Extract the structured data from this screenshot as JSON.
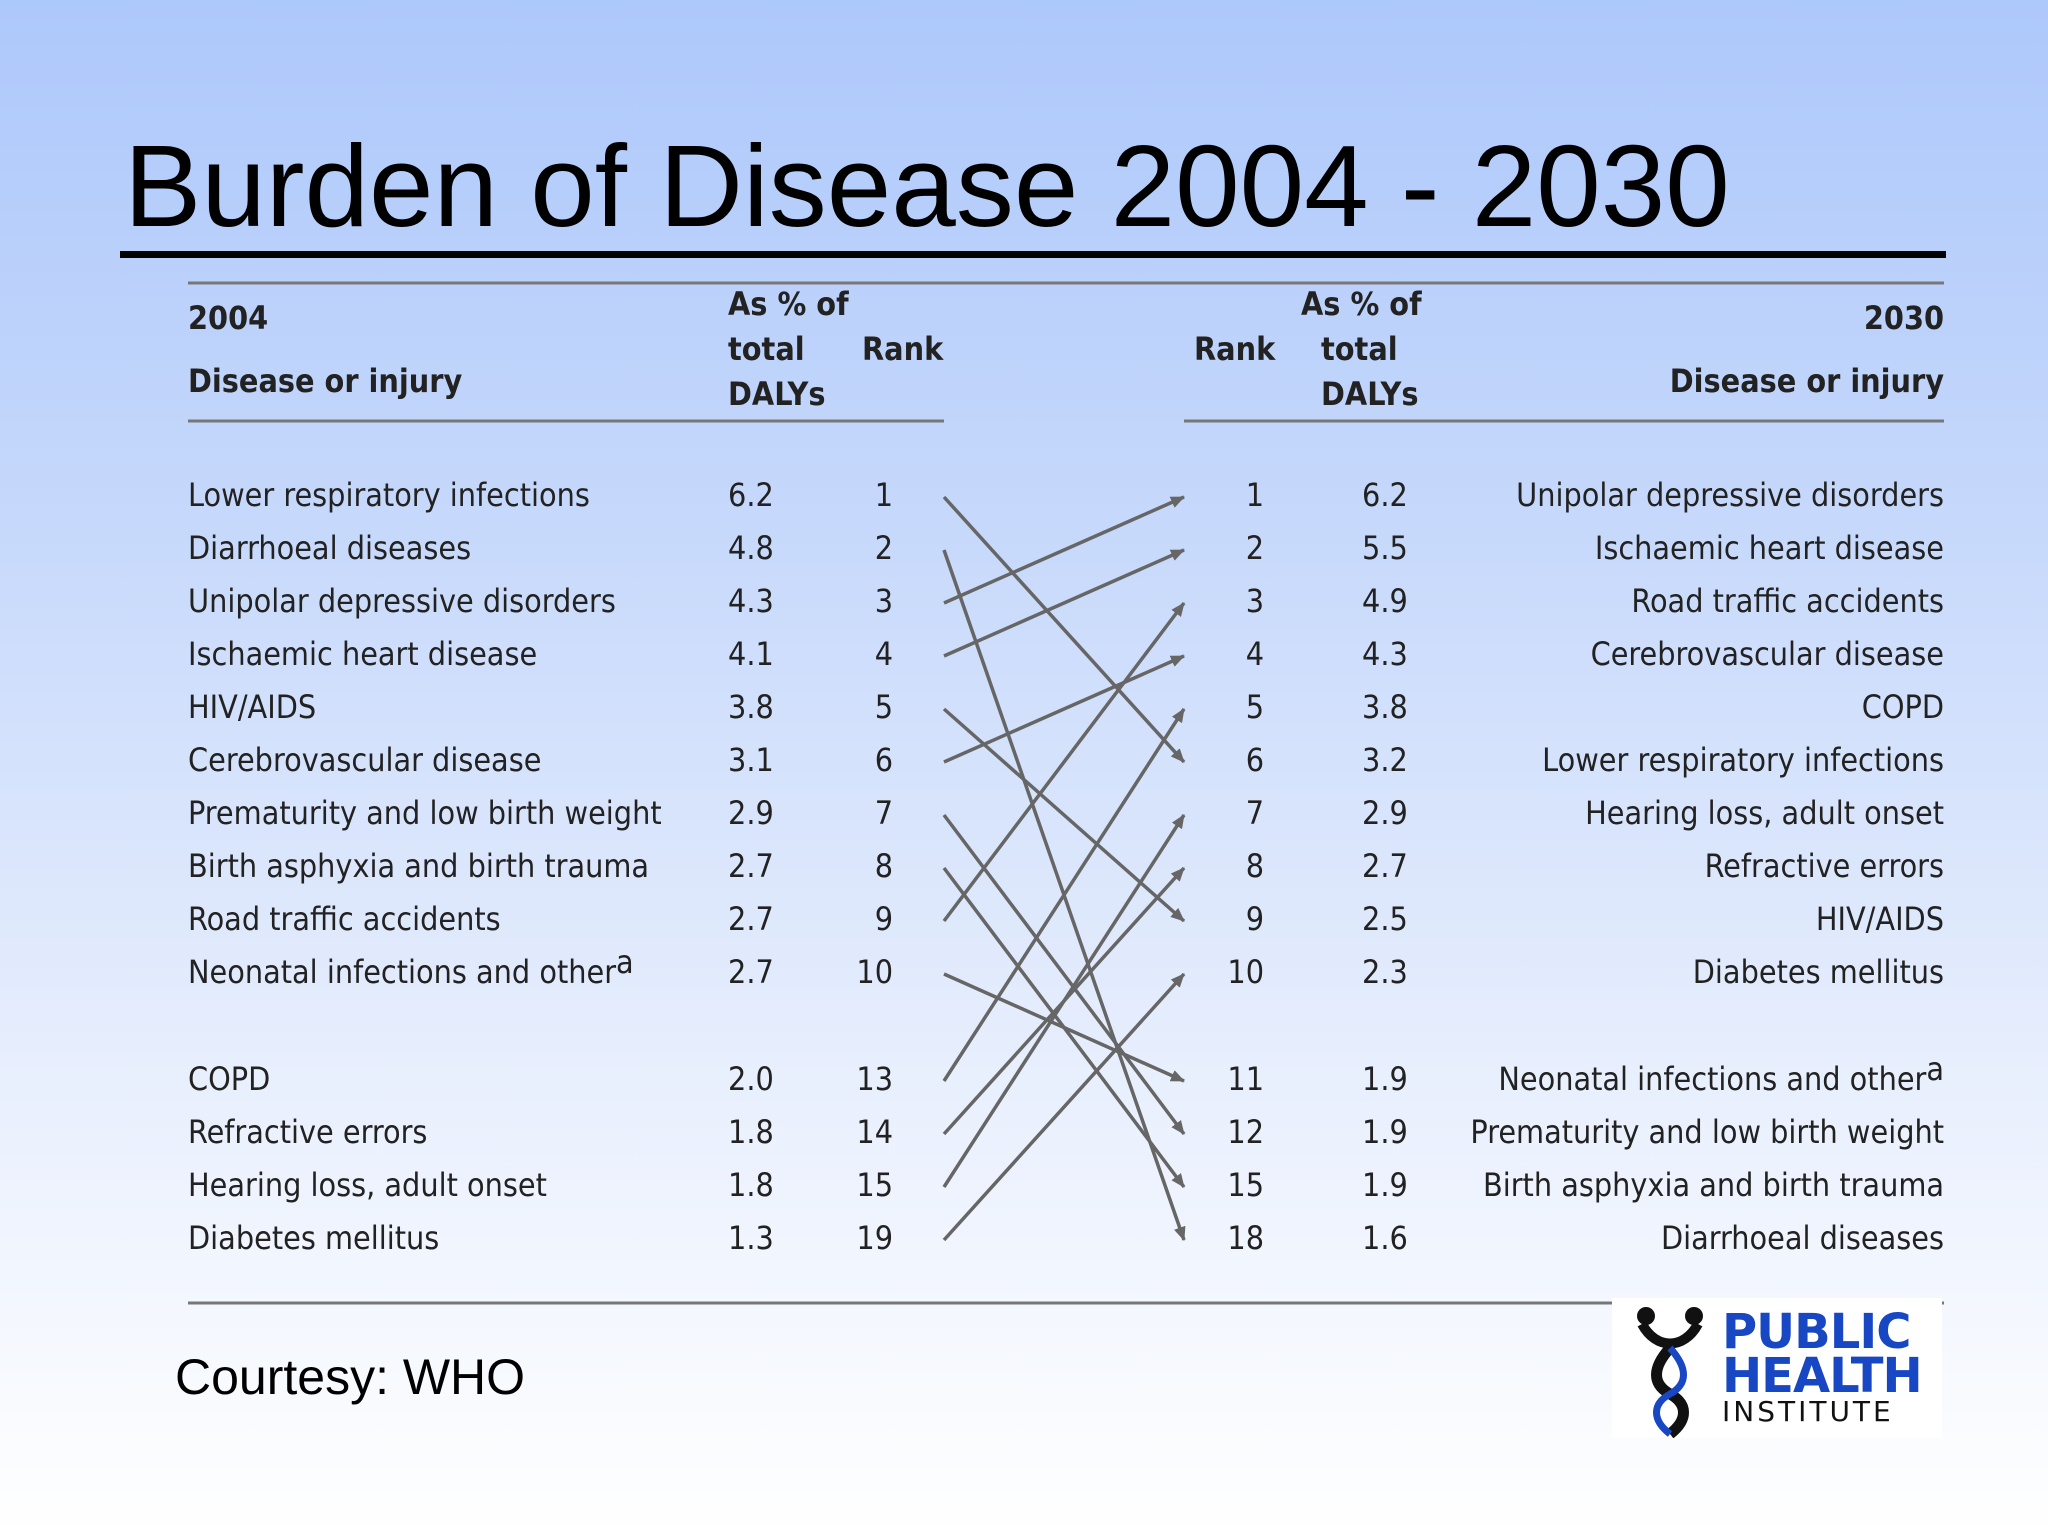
{
  "slide": {
    "title": "Burden of Disease 2004 - 2030",
    "courtesy": "Courtesy: WHO"
  },
  "logo": {
    "line1": "PUBLIC",
    "line2": "HEALTH",
    "line3": "INSTITUTE",
    "color": "#1847c4"
  },
  "chart_data": {
    "type": "table",
    "left_header": {
      "year": "2004",
      "disease": "Disease or injury",
      "pct": [
        "As % of",
        "total",
        "DALYs"
      ],
      "rank": "Rank"
    },
    "right_header": {
      "year": "2030",
      "disease": "Disease or injury",
      "pct": [
        "As % of",
        "total",
        "DALYs"
      ],
      "rank": "Rank"
    },
    "left_rows": [
      {
        "disease": "Lower respiratory infections",
        "pct": "6.2",
        "rank": "1"
      },
      {
        "disease": "Diarrhoeal diseases",
        "pct": "4.8",
        "rank": "2"
      },
      {
        "disease": "Unipolar depressive disorders",
        "pct": "4.3",
        "rank": "3"
      },
      {
        "disease": "Ischaemic heart disease",
        "pct": "4.1",
        "rank": "4"
      },
      {
        "disease": "HIV/AIDS",
        "pct": "3.8",
        "rank": "5"
      },
      {
        "disease": "Cerebrovascular disease",
        "pct": "3.1",
        "rank": "6"
      },
      {
        "disease": "Prematurity and low birth weight",
        "pct": "2.9",
        "rank": "7"
      },
      {
        "disease": "Birth asphyxia and birth trauma",
        "pct": "2.7",
        "rank": "8"
      },
      {
        "disease": "Road traffic accidents",
        "pct": "2.7",
        "rank": "9"
      },
      {
        "disease": "Neonatal infections and other",
        "sup": "a",
        "pct": "2.7",
        "rank": "10"
      },
      {
        "disease": "COPD",
        "pct": "2.0",
        "rank": "13"
      },
      {
        "disease": "Refractive errors",
        "pct": "1.8",
        "rank": "14"
      },
      {
        "disease": "Hearing loss, adult onset",
        "pct": "1.8",
        "rank": "15"
      },
      {
        "disease": "Diabetes mellitus",
        "pct": "1.3",
        "rank": "19"
      }
    ],
    "right_rows": [
      {
        "rank": "1",
        "pct": "6.2",
        "disease": "Unipolar depressive disorders"
      },
      {
        "rank": "2",
        "pct": "5.5",
        "disease": "Ischaemic heart disease"
      },
      {
        "rank": "3",
        "pct": "4.9",
        "disease": "Road traffic accidents"
      },
      {
        "rank": "4",
        "pct": "4.3",
        "disease": "Cerebrovascular disease"
      },
      {
        "rank": "5",
        "pct": "3.8",
        "disease": "COPD"
      },
      {
        "rank": "6",
        "pct": "3.2",
        "disease": "Lower respiratory infections"
      },
      {
        "rank": "7",
        "pct": "2.9",
        "disease": "Hearing loss, adult onset"
      },
      {
        "rank": "8",
        "pct": "2.7",
        "disease": "Refractive errors"
      },
      {
        "rank": "9",
        "pct": "2.5",
        "disease": "HIV/AIDS"
      },
      {
        "rank": "10",
        "pct": "2.3",
        "disease": "Diabetes mellitus"
      },
      {
        "rank": "11",
        "pct": "1.9",
        "disease": "Neonatal infections and other",
        "sup": "a"
      },
      {
        "rank": "12",
        "pct": "1.9",
        "disease": "Prematurity and low birth weight"
      },
      {
        "rank": "15",
        "pct": "1.9",
        "disease": "Birth asphyxia and birth trauma"
      },
      {
        "rank": "18",
        "pct": "1.6",
        "disease": "Diarrhoeal diseases"
      }
    ],
    "links": [
      [
        0,
        5
      ],
      [
        1,
        13
      ],
      [
        2,
        0
      ],
      [
        3,
        1
      ],
      [
        4,
        8
      ],
      [
        5,
        3
      ],
      [
        6,
        11
      ],
      [
        7,
        12
      ],
      [
        8,
        2
      ],
      [
        9,
        10
      ],
      [
        10,
        4
      ],
      [
        11,
        7
      ],
      [
        12,
        6
      ],
      [
        13,
        9
      ]
    ],
    "line_color": "#666666"
  }
}
